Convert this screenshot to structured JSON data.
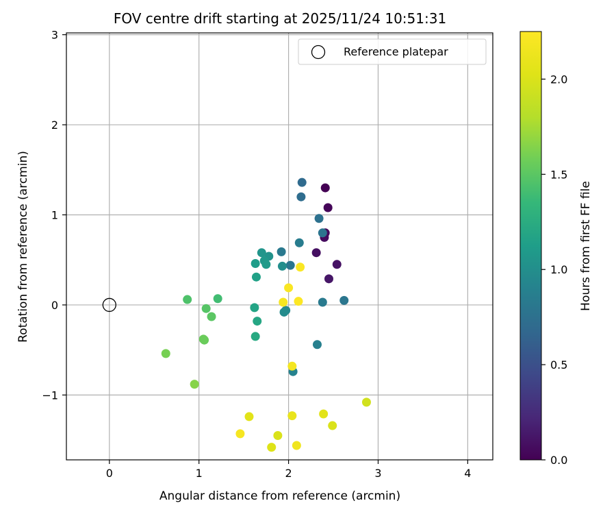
{
  "chart_data": {
    "type": "scatter",
    "title": "FOV centre drift starting at 2025/11/24 10:51:31",
    "xlabel": "Angular distance from reference (arcmin)",
    "ylabel": "Rotation from reference (arcmin)",
    "xlim": [
      -0.48,
      4.28
    ],
    "ylim": [
      -1.72,
      3.02
    ],
    "xticks": [
      0,
      1,
      2,
      3,
      4
    ],
    "yticks": [
      -1,
      0,
      1,
      2,
      3
    ],
    "xtick_labels": [
      "0",
      "1",
      "2",
      "3",
      "4"
    ],
    "ytick_labels": [
      "−1",
      "0",
      "1",
      "2",
      "3"
    ],
    "grid": true,
    "legend": {
      "location": "top-right",
      "label": "Reference platepar"
    },
    "reference_point": {
      "x": 0,
      "y": 0
    },
    "colorbar": {
      "label": "Hours from first FF file",
      "colormap": "viridis",
      "range": [
        0.0,
        2.25
      ],
      "ticks": [
        0.0,
        0.5,
        1.0,
        1.5,
        2.0
      ],
      "tick_labels": [
        "0.0",
        "0.5",
        "1.0",
        "1.5",
        "2.0"
      ]
    },
    "points": [
      {
        "x": 2.41,
        "y": 1.3,
        "t": 0.0
      },
      {
        "x": 2.44,
        "y": 1.08,
        "t": 0.03
      },
      {
        "x": 2.4,
        "y": 0.75,
        "t": 0.06
      },
      {
        "x": 2.41,
        "y": 0.8,
        "t": 0.05
      },
      {
        "x": 2.31,
        "y": 0.58,
        "t": 0.08
      },
      {
        "x": 2.54,
        "y": 0.45,
        "t": 0.1
      },
      {
        "x": 2.45,
        "y": 0.29,
        "t": 0.12
      },
      {
        "x": 2.15,
        "y": 1.36,
        "t": 0.7
      },
      {
        "x": 2.14,
        "y": 1.2,
        "t": 0.72
      },
      {
        "x": 2.34,
        "y": 0.96,
        "t": 0.75
      },
      {
        "x": 2.38,
        "y": 0.8,
        "t": 0.78
      },
      {
        "x": 2.12,
        "y": 0.69,
        "t": 0.85
      },
      {
        "x": 1.92,
        "y": 0.59,
        "t": 0.82
      },
      {
        "x": 2.02,
        "y": 0.44,
        "t": 0.8
      },
      {
        "x": 2.38,
        "y": 0.03,
        "t": 0.83
      },
      {
        "x": 2.62,
        "y": 0.05,
        "t": 0.8
      },
      {
        "x": 2.32,
        "y": -0.44,
        "t": 0.88
      },
      {
        "x": 2.05,
        "y": -0.74,
        "t": 0.9
      },
      {
        "x": 1.97,
        "y": -0.06,
        "t": 0.95
      },
      {
        "x": 1.95,
        "y": -0.08,
        "t": 0.97
      },
      {
        "x": 1.93,
        "y": 0.43,
        "t": 1.0
      },
      {
        "x": 1.78,
        "y": 0.54,
        "t": 1.03
      },
      {
        "x": 1.7,
        "y": 0.58,
        "t": 1.05
      },
      {
        "x": 1.73,
        "y": 0.49,
        "t": 1.08
      },
      {
        "x": 1.75,
        "y": 0.45,
        "t": 1.1
      },
      {
        "x": 1.63,
        "y": 0.46,
        "t": 1.12
      },
      {
        "x": 1.64,
        "y": 0.31,
        "t": 1.15
      },
      {
        "x": 1.62,
        "y": -0.03,
        "t": 1.18
      },
      {
        "x": 1.65,
        "y": -0.18,
        "t": 1.2
      },
      {
        "x": 1.63,
        "y": -0.35,
        "t": 1.22
      },
      {
        "x": 1.21,
        "y": 0.07,
        "t": 1.4
      },
      {
        "x": 0.87,
        "y": 0.06,
        "t": 1.45
      },
      {
        "x": 1.08,
        "y": -0.04,
        "t": 1.48
      },
      {
        "x": 1.14,
        "y": -0.13,
        "t": 1.5
      },
      {
        "x": 1.06,
        "y": -0.39,
        "t": 1.55
      },
      {
        "x": 1.05,
        "y": -0.38,
        "t": 1.56
      },
      {
        "x": 0.63,
        "y": -0.54,
        "t": 1.6
      },
      {
        "x": 0.95,
        "y": -0.88,
        "t": 1.65
      },
      {
        "x": 2.87,
        "y": -1.08,
        "t": 1.95
      },
      {
        "x": 2.49,
        "y": -1.34,
        "t": 2.0
      },
      {
        "x": 2.39,
        "y": -1.21,
        "t": 2.05
      },
      {
        "x": 1.88,
        "y": -1.45,
        "t": 2.0
      },
      {
        "x": 1.81,
        "y": -1.58,
        "t": 2.02
      },
      {
        "x": 1.56,
        "y": -1.24,
        "t": 2.05
      },
      {
        "x": 2.04,
        "y": -1.23,
        "t": 2.1
      },
      {
        "x": 2.09,
        "y": -1.56,
        "t": 2.15
      },
      {
        "x": 1.46,
        "y": -1.43,
        "t": 2.2
      },
      {
        "x": 2.04,
        "y": -0.68,
        "t": 2.18
      },
      {
        "x": 2.0,
        "y": 0.19,
        "t": 2.22
      },
      {
        "x": 2.13,
        "y": 0.42,
        "t": 2.23
      },
      {
        "x": 1.94,
        "y": 0.03,
        "t": 2.19
      },
      {
        "x": 2.11,
        "y": 0.04,
        "t": 2.24
      }
    ]
  }
}
